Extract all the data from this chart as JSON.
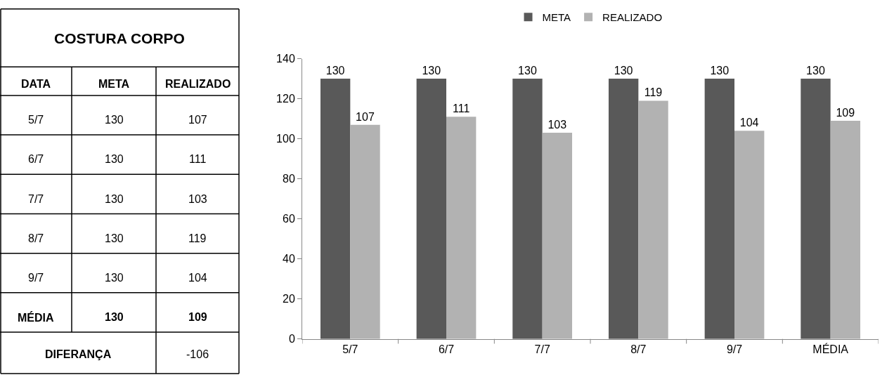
{
  "chart_data": [
    {
      "type": "other",
      "title": "COSTURA CORPO",
      "categories": [
        "5/7",
        "6/7",
        "7/7",
        "8/7",
        "9/7",
        "MÉDIA"
      ],
      "series": [
        {
          "name": "META",
          "values": [
            130,
            130,
            130,
            130,
            130,
            130
          ]
        },
        {
          "name": "REALIZADO",
          "values": [
            107,
            111,
            103,
            119,
            104,
            109
          ]
        }
      ],
      "data_labels": true,
      "annotations": [
        "DATA",
        "DIFERANÇA",
        "-106"
      ]
    },
    {
      "type": "bar",
      "categories": [
        "5/7",
        "6/7",
        "7/7",
        "8/7",
        "9/7",
        "MÉDIA"
      ],
      "series": [
        {
          "name": "META",
          "color": "#595959",
          "values": [
            130,
            130,
            130,
            130,
            130,
            130
          ]
        },
        {
          "name": "REALIZADO",
          "color": "#b2b2b2",
          "values": [
            107,
            111,
            103,
            119,
            104,
            109
          ]
        }
      ],
      "ylim": [
        0,
        140
      ],
      "yticks": [
        0,
        20,
        40,
        60,
        80,
        100,
        120,
        140
      ],
      "data_labels": true,
      "legend": "top"
    }
  ]
}
